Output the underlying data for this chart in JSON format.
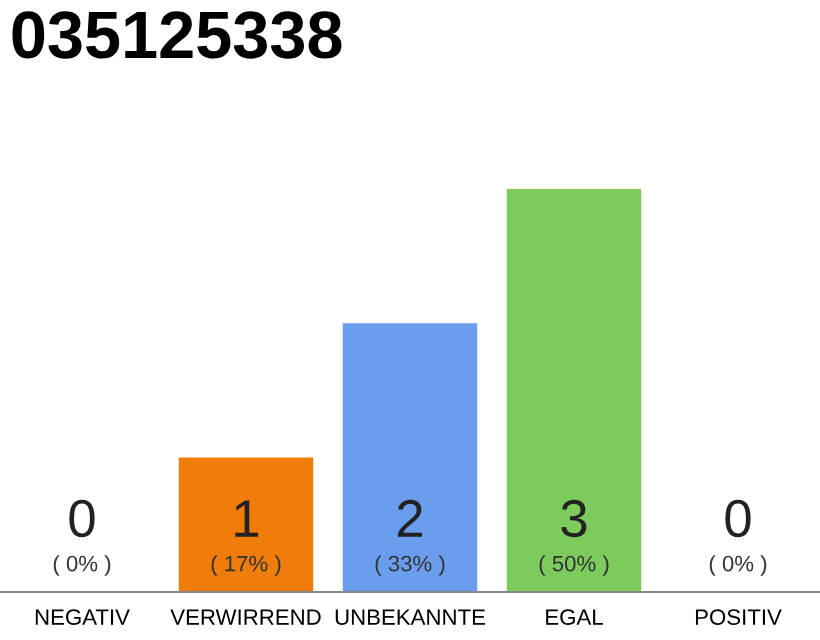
{
  "chart_data": {
    "type": "bar",
    "title": "035125338",
    "categories": [
      "NEGATIV",
      "VERWIRREND",
      "UNBEKANNTE",
      "EGAL",
      "POSITIV"
    ],
    "values": [
      0,
      1,
      2,
      3,
      0
    ],
    "colors": [
      "#f07d0a",
      "#f07d0a",
      "#6a9ded",
      "#7dcb5d",
      "#7dcb5d"
    ],
    "ylim": [
      0,
      3
    ],
    "data_labels": true,
    "annotations": [
      {
        "text": "( 0% )",
        "x": "NEGATIV",
        "y": 0
      },
      {
        "text": "( 17% )",
        "x": "VERWIRREND",
        "y": 0
      },
      {
        "text": "( 33% )",
        "x": "UNBEKANNTE",
        "y": 0
      },
      {
        "text": "( 50% )",
        "x": "EGAL",
        "y": 0
      },
      {
        "text": "( 0% )",
        "x": "POSITIV",
        "y": 0
      }
    ],
    "grid": false,
    "legend": false
  }
}
